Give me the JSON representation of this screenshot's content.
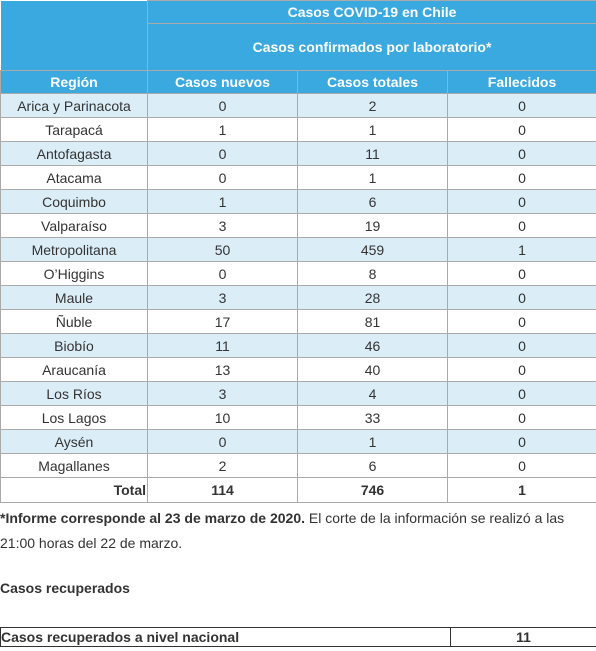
{
  "table": {
    "title": "Casos COVID-19 en Chile",
    "subtitle": "Casos confirmados por laboratorio*",
    "headers": [
      "Región",
      "Casos nuevos",
      "Casos totales",
      "Fallecidos"
    ],
    "rows": [
      {
        "region": "Arica y Parinacota",
        "nuevos": "0",
        "totales": "2",
        "fallecidos": "0"
      },
      {
        "region": "Tarapacá",
        "nuevos": "1",
        "totales": "1",
        "fallecidos": "0"
      },
      {
        "region": "Antofagasta",
        "nuevos": "0",
        "totales": "11",
        "fallecidos": "0"
      },
      {
        "region": "Atacama",
        "nuevos": "0",
        "totales": "1",
        "fallecidos": "0"
      },
      {
        "region": "Coquimbo",
        "nuevos": "1",
        "totales": "6",
        "fallecidos": "0"
      },
      {
        "region": "Valparaíso",
        "nuevos": "3",
        "totales": "19",
        "fallecidos": "0"
      },
      {
        "region": "Metropolitana",
        "nuevos": "50",
        "totales": "459",
        "fallecidos": "1"
      },
      {
        "region": "O’Higgins",
        "nuevos": "0",
        "totales": "8",
        "fallecidos": "0"
      },
      {
        "region": "Maule",
        "nuevos": "3",
        "totales": "28",
        "fallecidos": "0"
      },
      {
        "region": "Ñuble",
        "nuevos": "17",
        "totales": "81",
        "fallecidos": "0"
      },
      {
        "region": "Biobío",
        "nuevos": "11",
        "totales": "46",
        "fallecidos": "0"
      },
      {
        "region": "Araucanía",
        "nuevos": "13",
        "totales": "40",
        "fallecidos": "0"
      },
      {
        "region": "Los Ríos",
        "nuevos": "3",
        "totales": "4",
        "fallecidos": "0"
      },
      {
        "region": "Los Lagos",
        "nuevos": "10",
        "totales": "33",
        "fallecidos": "0"
      },
      {
        "region": "Aysén",
        "nuevos": "0",
        "totales": "1",
        "fallecidos": "0"
      },
      {
        "region": "Magallanes",
        "nuevos": "2",
        "totales": "6",
        "fallecidos": "0"
      }
    ],
    "total": {
      "label": "Total",
      "nuevos": "114",
      "totales": "746",
      "fallecidos": "1"
    }
  },
  "note": {
    "bold": "*Informe corresponde al 23 de marzo de 2020.",
    "rest": " El corte de la información se realizó a las 21:00 horas del 22 de marzo."
  },
  "recovered": {
    "heading": "Casos recuperados",
    "label": "Casos recuperados a nivel nacional",
    "value": "11"
  },
  "colors": {
    "header_bg": "#3aa9e0",
    "stripe_bg": "#dbeef8"
  }
}
